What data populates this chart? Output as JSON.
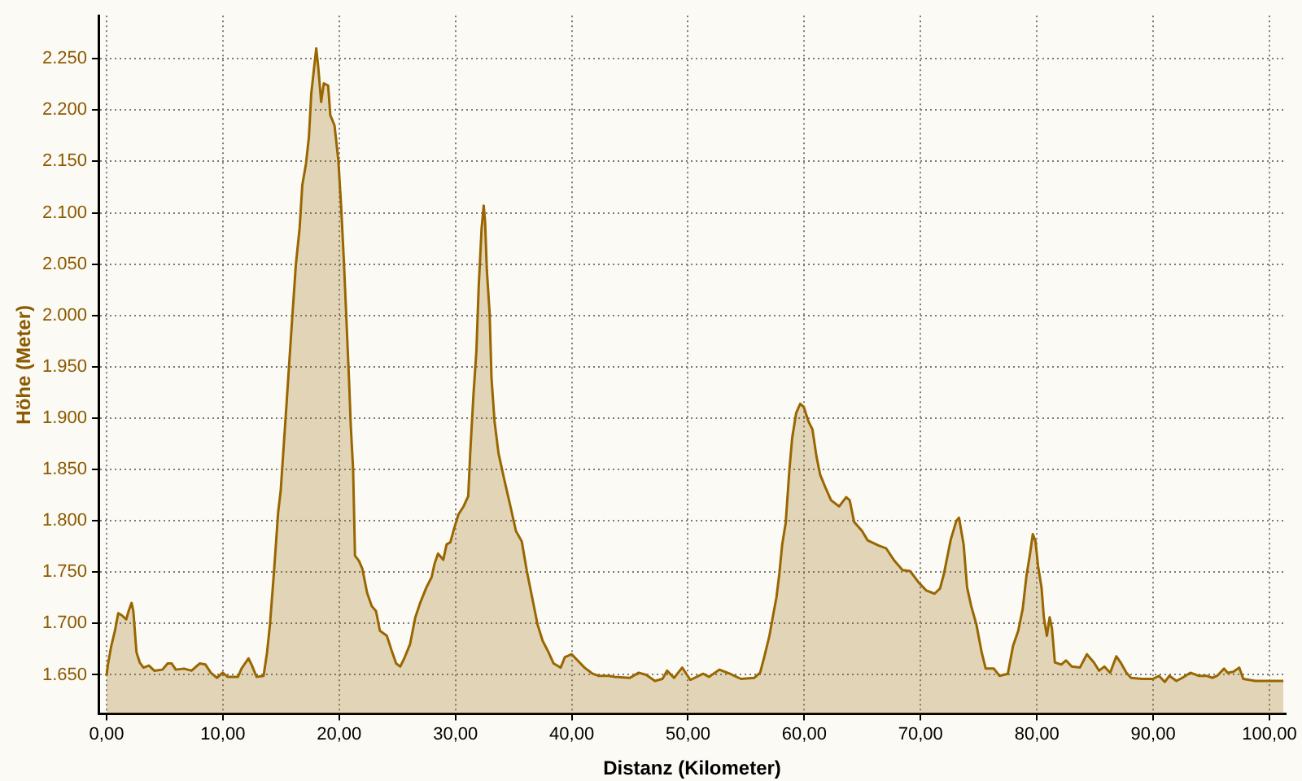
{
  "chart_data": {
    "type": "area",
    "xlabel": "Distanz (Kilometer)",
    "ylabel": "Höhe (Meter)",
    "color": "#996600",
    "grid": true,
    "xlim": [
      -0.7,
      101.4
    ],
    "ylim": [
      1612,
      2292
    ],
    "xticks": [
      {
        "value": 0,
        "label": "0,00"
      },
      {
        "value": 10,
        "label": "10,00"
      },
      {
        "value": 20,
        "label": "20,00"
      },
      {
        "value": 30,
        "label": "30,00"
      },
      {
        "value": 40,
        "label": "40,00"
      },
      {
        "value": 50,
        "label": "50,00"
      },
      {
        "value": 60,
        "label": "60,00"
      },
      {
        "value": 70,
        "label": "70,00"
      },
      {
        "value": 80,
        "label": "80,00"
      },
      {
        "value": 90,
        "label": "90,00"
      },
      {
        "value": 100,
        "label": "100,00"
      }
    ],
    "yticks": [
      {
        "value": 1650,
        "label": "1.650"
      },
      {
        "value": 1700,
        "label": "1.700"
      },
      {
        "value": 1750,
        "label": "1.750"
      },
      {
        "value": 1800,
        "label": "1.800"
      },
      {
        "value": 1850,
        "label": "1.850"
      },
      {
        "value": 1900,
        "label": "1.900"
      },
      {
        "value": 1950,
        "label": "1.950"
      },
      {
        "value": 2000,
        "label": "2.000"
      },
      {
        "value": 2050,
        "label": "2.050"
      },
      {
        "value": 2100,
        "label": "2.100"
      },
      {
        "value": 2150,
        "label": "2.150"
      },
      {
        "value": 2200,
        "label": "2.200"
      },
      {
        "value": 2250,
        "label": "2.250"
      }
    ],
    "x": [
      0,
      0.1,
      0.4,
      0.72,
      1.0,
      1.3,
      1.69,
      1.92,
      2.15,
      2.3,
      2.57,
      2.85,
      3.17,
      3.64,
      4.1,
      4.8,
      5.25,
      5.6,
      5.95,
      6.65,
      7.3,
      8.0,
      8.5,
      8.96,
      9.5,
      9.98,
      10.4,
      11.3,
      11.6,
      12.2,
      12.5,
      12.9,
      13.5,
      13.8,
      14.05,
      14.4,
      14.75,
      14.97,
      15.44,
      15.9,
      16.28,
      16.6,
      16.83,
      17.15,
      17.4,
      17.6,
      17.85,
      18.03,
      18.2,
      18.45,
      18.68,
      19.05,
      19.24,
      19.6,
      19.93,
      20.17,
      20.4,
      20.6,
      20.86,
      21.0,
      21.2,
      21.36,
      21.7,
      22.0,
      22.4,
      22.8,
      23.17,
      23.5,
      24.1,
      24.47,
      24.9,
      25.25,
      25.6,
      26.1,
      26.55,
      27.0,
      27.5,
      27.95,
      28.2,
      28.5,
      28.95,
      29.24,
      29.56,
      29.9,
      30.25,
      30.7,
      31.1,
      31.27,
      31.55,
      31.8,
      32.0,
      32.25,
      32.43,
      32.55,
      32.7,
      32.94,
      33.1,
      33.36,
      33.7,
      34.2,
      34.75,
      35.2,
      35.7,
      36.14,
      36.6,
      37.06,
      37.5,
      38.0,
      38.44,
      39.05,
      39.4,
      40.0,
      40.5,
      41.1,
      41.8,
      42.3,
      43.2,
      43.7,
      45.0,
      45.76,
      46.4,
      47.15,
      47.8,
      48.2,
      48.8,
      49.5,
      50.2,
      51.3,
      51.8,
      52.7,
      53.6,
      54.55,
      55.7,
      56.2,
      56.55,
      57.0,
      57.35,
      57.6,
      57.85,
      58.1,
      58.4,
      58.72,
      58.96,
      59.3,
      59.65,
      59.95,
      60.35,
      60.7,
      61.04,
      61.36,
      61.83,
      62.3,
      63.0,
      63.6,
      63.9,
      64.28,
      64.97,
      65.44,
      66.36,
      67.05,
      67.75,
      68.45,
      69.1,
      69.83,
      70.5,
      71.2,
      71.67,
      72.0,
      72.6,
      73.08,
      73.3,
      73.7,
      74.0,
      74.35,
      74.8,
      75.25,
      75.6,
      76.3,
      76.78,
      77.5,
      77.95,
      78.4,
      78.78,
      79.1,
      79.4,
      79.65,
      79.88,
      80.1,
      80.4,
      80.6,
      80.86,
      81.1,
      81.3,
      81.55,
      82.1,
      82.5,
      83.0,
      83.7,
      84.3,
      84.9,
      85.35,
      85.8,
      86.3,
      86.83,
      87.2,
      87.7,
      88.1,
      89.05,
      90.0,
      90.5,
      91.0,
      91.4,
      92.0,
      92.5,
      93.2,
      93.9,
      94.6,
      95.1,
      95.5,
      96.1,
      96.4,
      96.9,
      97.4,
      97.75,
      98.8,
      101.2
    ],
    "values": [
      1649,
      1659,
      1678,
      1693,
      1710,
      1708,
      1704,
      1713,
      1720,
      1712,
      1672,
      1662,
      1657,
      1659,
      1654,
      1655,
      1661,
      1661,
      1655,
      1656,
      1654,
      1661,
      1660,
      1652,
      1647,
      1652,
      1648,
      1648,
      1656,
      1666,
      1659,
      1648,
      1649,
      1672,
      1699,
      1751,
      1808,
      1829,
      1908,
      1987,
      2050,
      2085,
      2127,
      2148,
      2174,
      2216,
      2242,
      2260,
      2242,
      2208,
      2226,
      2224,
      2195,
      2185,
      2151,
      2106,
      2054,
      2002,
      1934,
      1892,
      1850,
      1766,
      1761,
      1753,
      1730,
      1717,
      1712,
      1693,
      1688,
      1675,
      1661,
      1658,
      1666,
      1680,
      1706,
      1721,
      1735,
      1745,
      1758,
      1768,
      1762,
      1777,
      1779,
      1793,
      1806,
      1814,
      1824,
      1866,
      1923,
      1965,
      2028,
      2085,
      2107,
      2091,
      2044,
      2002,
      1939,
      1897,
      1866,
      1840,
      1813,
      1790,
      1780,
      1751,
      1725,
      1699,
      1683,
      1672,
      1661,
      1657,
      1667,
      1670,
      1664,
      1657,
      1651,
      1649,
      1649,
      1648,
      1647,
      1652,
      1650,
      1644,
      1646,
      1654,
      1647,
      1657,
      1645,
      1651,
      1648,
      1655,
      1651,
      1646,
      1647,
      1652,
      1667,
      1688,
      1710,
      1725,
      1748,
      1777,
      1798,
      1850,
      1881,
      1905,
      1914,
      1911,
      1897,
      1889,
      1863,
      1845,
      1832,
      1820,
      1814,
      1823,
      1820,
      1799,
      1790,
      1781,
      1776,
      1773,
      1761,
      1752,
      1751,
      1740,
      1732,
      1729,
      1734,
      1748,
      1782,
      1800,
      1803,
      1777,
      1735,
      1717,
      1699,
      1672,
      1656,
      1656,
      1649,
      1651,
      1678,
      1693,
      1714,
      1746,
      1767,
      1787,
      1780,
      1756,
      1735,
      1706,
      1688,
      1706,
      1695,
      1662,
      1660,
      1664,
      1658,
      1657,
      1670,
      1662,
      1654,
      1658,
      1652,
      1668,
      1662,
      1652,
      1647,
      1646,
      1646,
      1649,
      1643,
      1649,
      1644,
      1647,
      1652,
      1649,
      1649,
      1647,
      1649,
      1656,
      1652,
      1653,
      1657,
      1646,
      1644,
      1644
    ]
  }
}
